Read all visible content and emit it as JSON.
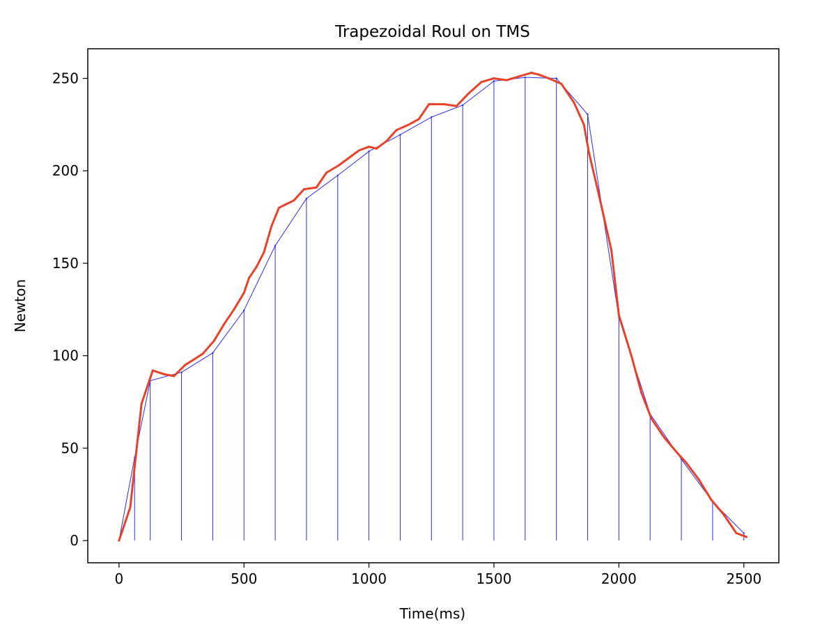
{
  "chart_data": {
    "type": "line",
    "title": "Trapezoidal Roul on TMS",
    "xlabel": "Time(ms)",
    "ylabel": "Newton",
    "xlim": [
      -125,
      2640
    ],
    "ylim": [
      -12,
      266
    ],
    "x_ticks": [
      0,
      500,
      1000,
      1500,
      2000,
      2500
    ],
    "y_ticks": [
      0,
      50,
      100,
      150,
      200,
      250
    ],
    "x_tick_labels": [
      "0",
      "500",
      "1000",
      "1500",
      "2000",
      "2500"
    ],
    "y_tick_labels": [
      "0",
      "50",
      "100",
      "150",
      "200",
      "250"
    ],
    "grid": false,
    "colors": {
      "measured": "#e8412a",
      "trapezoid": "#2b2bf0"
    },
    "series": [
      {
        "style": "measured",
        "x": [
          0,
          45,
          90,
          135,
          180,
          220,
          235,
          265,
          300,
          335,
          380,
          420,
          460,
          500,
          520,
          550,
          580,
          610,
          640,
          670,
          700,
          740,
          790,
          830,
          880,
          920,
          960,
          1000,
          1030,
          1070,
          1110,
          1160,
          1200,
          1240,
          1300,
          1350,
          1400,
          1450,
          1500,
          1550,
          1600,
          1650,
          1680,
          1720,
          1770,
          1820,
          1860,
          1880,
          1920,
          1970,
          2000,
          2050,
          2090,
          2130,
          2180,
          2230,
          2270,
          2320,
          2370,
          2420,
          2470,
          2510
        ],
        "y": [
          0,
          18,
          74,
          92,
          90,
          89,
          91,
          95,
          98,
          101,
          108,
          117,
          125,
          134,
          142,
          148,
          156,
          170,
          180,
          182,
          184,
          190,
          191,
          199,
          203,
          207,
          211,
          213,
          212,
          216,
          222,
          225,
          228,
          236,
          236,
          235,
          242,
          248,
          250,
          249,
          251,
          253,
          252,
          250,
          247,
          237,
          225,
          210,
          187,
          157,
          122,
          100,
          80,
          66,
          56,
          48,
          42,
          33,
          22,
          14,
          4,
          2
        ]
      },
      {
        "style": "trapezoid",
        "x": [
          0,
          62.5,
          125,
          250,
          375,
          500,
          625,
          750,
          875,
          1000,
          1125,
          1250,
          1375,
          1500,
          1625,
          1750,
          1875,
          2000,
          2125,
          2250,
          2375,
          2500
        ],
        "y": [
          0,
          45,
          86.5,
          91,
          101.5,
          124.5,
          159.5,
          185,
          197.5,
          210.5,
          219.5,
          229,
          235.5,
          248.5,
          250.5,
          250,
          230.5,
          120.5,
          68.5,
          44,
          21,
          4
        ]
      }
    ]
  }
}
